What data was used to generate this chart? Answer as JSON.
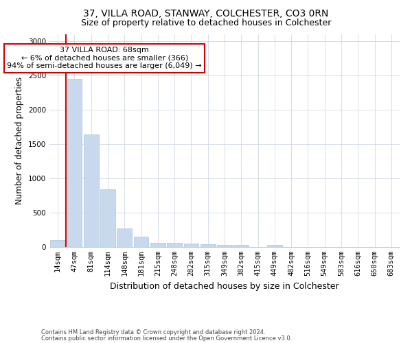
{
  "title1": "37, VILLA ROAD, STANWAY, COLCHESTER, CO3 0RN",
  "title2": "Size of property relative to detached houses in Colchester",
  "xlabel": "Distribution of detached houses by size in Colchester",
  "ylabel": "Number of detached properties",
  "categories": [
    "14sqm",
    "47sqm",
    "81sqm",
    "114sqm",
    "148sqm",
    "181sqm",
    "215sqm",
    "248sqm",
    "282sqm",
    "315sqm",
    "349sqm",
    "382sqm",
    "415sqm",
    "449sqm",
    "482sqm",
    "516sqm",
    "549sqm",
    "583sqm",
    "616sqm",
    "650sqm",
    "683sqm"
  ],
  "values": [
    100,
    2450,
    1640,
    840,
    270,
    150,
    60,
    60,
    50,
    40,
    30,
    30,
    0,
    30,
    0,
    0,
    0,
    0,
    0,
    0,
    0
  ],
  "bar_color": "#c9d9ed",
  "bar_edge_color": "#a8c4dc",
  "red_line_x": 0.5,
  "annotation_text": "37 VILLA ROAD: 68sqm\n← 6% of detached houses are smaller (366)\n94% of semi-detached houses are larger (6,049) →",
  "annotation_box_color": "#ffffff",
  "annotation_box_edge": "#cc0000",
  "footer1": "Contains HM Land Registry data © Crown copyright and database right 2024.",
  "footer2": "Contains public sector information licensed under the Open Government Licence v3.0.",
  "ylim": [
    0,
    3100
  ],
  "yticks": [
    0,
    500,
    1000,
    1500,
    2000,
    2500,
    3000
  ],
  "grid_color": "#d0d8e4",
  "bg_color": "#ffffff",
  "title1_fontsize": 10,
  "title2_fontsize": 9,
  "tick_fontsize": 7.5,
  "ylabel_fontsize": 8.5,
  "xlabel_fontsize": 9,
  "footer_fontsize": 6,
  "annotation_fontsize": 8
}
